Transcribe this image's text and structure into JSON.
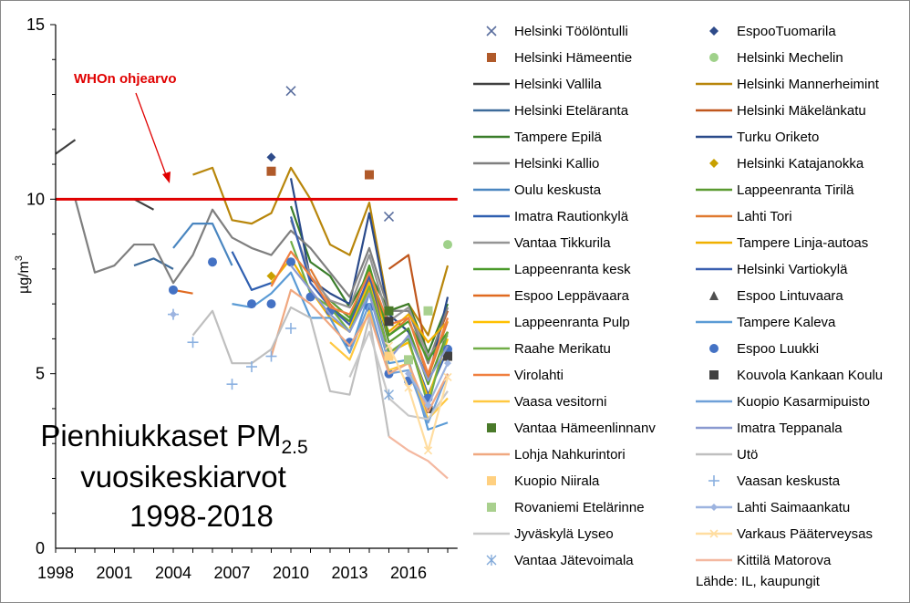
{
  "chart_data": {
    "type": "line",
    "title_main": "Pienhiukkaset PM",
    "title_sub": "2.5",
    "title_line2": "vuosikeskiarvot",
    "title_line3": "1998-2018",
    "ylabel_main": "µg/m",
    "ylabel_sup": "3",
    "source": "Lähde: IL, kaupungit",
    "who_label": "WHOn ohjearvo",
    "who_value": 10,
    "xlim": [
      1998,
      2018.5
    ],
    "ylim": [
      0,
      15
    ],
    "xticks": [
      "1998",
      "2001",
      "2004",
      "2007",
      "2010",
      "2013",
      "2016"
    ],
    "yticks": [
      "0",
      "5",
      "10",
      "15"
    ],
    "series": [
      {
        "name": "Helsinki Töölöntulli",
        "color": "#5a6e9e",
        "style": "x",
        "x": [
          2010,
          2015
        ],
        "y": [
          13.1,
          9.5
        ]
      },
      {
        "name": "EspooTuomarila",
        "color": "#2e4b8a",
        "style": "diamond",
        "x": [
          2009
        ],
        "y": [
          11.2
        ]
      },
      {
        "name": "Helsinki Hämeentie",
        "color": "#b05a2a",
        "style": "square",
        "x": [
          2009,
          2014
        ],
        "y": [
          10.8,
          10.7
        ]
      },
      {
        "name": "Helsinki Mechelin",
        "color": "#9fd18a",
        "style": "circle",
        "x": [
          2018
        ],
        "y": [
          8.7
        ]
      },
      {
        "name": "Helsinki Vallila",
        "color": "#404040",
        "style": "line",
        "x": [
          1998,
          1999,
          2002,
          2003
        ],
        "y": [
          11.3,
          11.7,
          10,
          9.7
        ]
      },
      {
        "name": "Helsinki Mannerheimint",
        "color": "#b8860b",
        "style": "line",
        "x": [
          2005,
          2006,
          2007,
          2008,
          2009,
          2010,
          2011,
          2012,
          2013,
          2014,
          2015,
          2016,
          2017,
          2018
        ],
        "y": [
          10.7,
          10.9,
          9.4,
          9.3,
          9.6,
          10.9,
          10,
          8.7,
          8.4,
          9.9,
          6.8,
          7,
          6.1,
          8.1
        ]
      },
      {
        "name": "Helsinki Eteläranta",
        "color": "#3d6b9a",
        "style": "line",
        "x": [
          2002,
          2003,
          2004
        ],
        "y": [
          8.1,
          8.3,
          8.0
        ]
      },
      {
        "name": "Helsinki Mäkelänkatu",
        "color": "#c0571d",
        "style": "line",
        "x": [
          2015,
          2016,
          2017,
          2018
        ],
        "y": [
          8.0,
          8.4,
          5.3,
          6.8
        ]
      },
      {
        "name": "Tampere Epilä",
        "color": "#3a7d2a",
        "style": "line",
        "x": [
          2010,
          2011,
          2012,
          2013,
          2014,
          2015,
          2016,
          2017,
          2018
        ],
        "y": [
          9.8,
          8.2,
          7.8,
          6.9,
          7.9,
          6.8,
          7.0,
          5.6,
          7.0
        ]
      },
      {
        "name": "Turku Oriketo",
        "color": "#2a4a8a",
        "style": "line",
        "x": [
          2010,
          2011,
          2012,
          2013,
          2014,
          2015,
          2016,
          2017,
          2018
        ],
        "y": [
          10.6,
          7.7,
          7.3,
          7.0,
          9.6,
          6.7,
          6.2,
          4.8,
          7.2
        ]
      },
      {
        "name": "Helsinki Kallio",
        "color": "#7f7f7f",
        "style": "line",
        "x": [
          1999,
          2000,
          2001,
          2002,
          2003,
          2004,
          2005,
          2006,
          2007,
          2008,
          2009,
          2010,
          2011,
          2012,
          2013,
          2014,
          2015,
          2016,
          2017,
          2018
        ],
        "y": [
          10,
          7.9,
          8.1,
          8.7,
          8.7,
          7.6,
          8.4,
          9.7,
          8.9,
          8.6,
          8.4,
          9.1,
          8.6,
          7.9,
          7.2,
          8.6,
          6.8,
          6.8,
          5.3,
          6.9
        ]
      },
      {
        "name": "Helsinki Katajanokka",
        "color": "#c8a000",
        "style": "diamond",
        "x": [
          2009
        ],
        "y": [
          7.8
        ]
      },
      {
        "name": "Oulu keskusta",
        "color": "#4a86c0",
        "style": "line",
        "x": [
          2004,
          2005,
          2006,
          2007
        ],
        "y": [
          8.6,
          9.3,
          9.3,
          8.1
        ]
      },
      {
        "name": "Lappeenranta Tirilä",
        "color": "#5a9a30",
        "style": "line",
        "x": [
          2012,
          2013,
          2014,
          2015,
          2016,
          2017,
          2018
        ],
        "y": [
          7.1,
          6.6,
          8.0,
          5.9,
          6.3,
          4.7,
          6.2
        ]
      },
      {
        "name": "Imatra Rautionkylä",
        "color": "#2f5fb0",
        "style": "line",
        "x": [
          2007,
          2008,
          2009
        ],
        "y": [
          8.5,
          7.4,
          7.6
        ]
      },
      {
        "name": "Lahti Tori",
        "color": "#e07a30",
        "style": "line",
        "x": [
          2011,
          2012,
          2013,
          2014,
          2015,
          2016,
          2017,
          2018
        ],
        "y": [
          8.0,
          7.0,
          6.4,
          7.7,
          6.1,
          6.6,
          4.9,
          6.5
        ]
      },
      {
        "name": "Vantaa Tikkurila",
        "color": "#959595",
        "style": "line",
        "x": [
          2010,
          2011,
          2012,
          2013,
          2014,
          2015,
          2016,
          2017,
          2018
        ],
        "y": [
          9.4,
          7.8,
          7.1,
          6.9,
          8.4,
          6.5,
          6.9,
          5.5,
          6.1
        ]
      },
      {
        "name": "Tampere Linja-autoas",
        "color": "#f0b000",
        "style": "line",
        "x": [
          2009,
          2010,
          2011,
          2012,
          2013,
          2014,
          2015,
          2016,
          2017,
          2018
        ],
        "y": [
          7.6,
          8.3,
          7.4,
          6.6,
          6.2,
          7.4,
          6.2,
          6.7,
          5.9,
          6.5
        ]
      },
      {
        "name": "Lappeenranta kesk",
        "color": "#4a9a2a",
        "style": "line",
        "x": [
          2012,
          2013,
          2014,
          2015,
          2016,
          2017,
          2018
        ],
        "y": [
          6.9,
          6.5,
          8.1,
          6.1,
          6.5,
          5.4,
          6.2
        ]
      },
      {
        "name": "Helsinki Vartiokylä",
        "color": "#3a5fb0",
        "style": "line",
        "x": [
          2010,
          2011,
          2012,
          2013,
          2014,
          2015,
          2016,
          2017,
          2018
        ],
        "y": [
          9.5,
          7.6,
          6.9,
          6.4,
          7.8,
          5.6,
          5.9,
          4.4,
          5.7
        ]
      },
      {
        "name": "Espoo Leppävaara",
        "color": "#e06a20",
        "style": "line",
        "x": [
          2004,
          2005
        ],
        "y": [
          7.4,
          7.3
        ]
      },
      {
        "name": "Espoo Lintuvaara",
        "color": "#505050",
        "style": "triangle",
        "x": [
          2017
        ],
        "y": [
          4.0
        ]
      },
      {
        "name": "Lappeenranta Pulp",
        "color": "#ffc000",
        "style": "line",
        "x": [
          2013,
          2014,
          2015,
          2016,
          2017,
          2018
        ],
        "y": [
          6.3,
          7.6,
          5.6,
          5.9,
          4.3,
          6.0
        ]
      },
      {
        "name": "Tampere Kaleva",
        "color": "#5b9bd5",
        "style": "line",
        "x": [
          2007,
          2008,
          2009,
          2010,
          2011,
          2012,
          2013,
          2014,
          2015,
          2016,
          2017,
          2018
        ],
        "y": [
          7.0,
          6.9,
          7.3,
          7.9,
          6.6,
          6.6,
          5.6,
          7.3,
          5.3,
          5.4,
          3.4,
          3.6
        ]
      },
      {
        "name": "Raahe Merikatu",
        "color": "#70ad47",
        "style": "line",
        "x": [
          2010,
          2011,
          2012,
          2013,
          2014,
          2015,
          2016,
          2017,
          2018
        ],
        "y": [
          8.8,
          7.3,
          6.9,
          6.2,
          7.5,
          5.6,
          6.0,
          4.1,
          6.2
        ]
      },
      {
        "name": "Espoo Luukki",
        "color": "#4472c4",
        "style": "circle",
        "x": [
          2004,
          2006,
          2008,
          2009,
          2010,
          2011,
          2012,
          2013,
          2014,
          2015,
          2016,
          2017,
          2018
        ],
        "y": [
          7.4,
          8.2,
          7.0,
          7.0,
          8.2,
          7.2,
          6.8,
          5.9,
          6.9,
          5.0,
          4.8,
          4.3,
          5.7
        ]
      },
      {
        "name": "Virolahti",
        "color": "#f08040",
        "style": "line",
        "x": [
          2009,
          2010,
          2011,
          2012,
          2013,
          2014,
          2015,
          2016,
          2017,
          2018
        ],
        "y": [
          7.5,
          8.5,
          7.8,
          6.9,
          6.7,
          7.9,
          6.4,
          6.6,
          5.0,
          6.6
        ]
      },
      {
        "name": "Kouvola Kankaan Koulu",
        "color": "#404040",
        "style": "square",
        "x": [
          2015,
          2017,
          2018
        ],
        "y": [
          6.5,
          4.0,
          5.5
        ]
      },
      {
        "name": "Vaasa vesitorni",
        "color": "#ffc840",
        "style": "line",
        "x": [
          2012,
          2013,
          2014,
          2015,
          2016,
          2017,
          2018
        ],
        "y": [
          5.9,
          5.4,
          6.8,
          5.1,
          5.3,
          3.7,
          4.3
        ]
      },
      {
        "name": "Kuopio Kasarmipuisto",
        "color": "#6fa0d8",
        "style": "line",
        "x": [
          2013,
          2014,
          2015,
          2016,
          2017,
          2018
        ],
        "y": [
          5.6,
          7.0,
          5.0,
          5.1,
          3.6,
          5.0
        ]
      },
      {
        "name": "Vantaa Hämeenlinnanv",
        "color": "#4a7a2a",
        "style": "square",
        "x": [
          2015
        ],
        "y": [
          6.8
        ]
      },
      {
        "name": "Imatra Teppanala",
        "color": "#8a9ad0",
        "style": "line",
        "x": [
          2010,
          2011,
          2012,
          2013,
          2014,
          2015,
          2016,
          2017,
          2018
        ],
        "y": [
          8.1,
          7.4,
          6.7,
          6.2,
          7.3,
          5.4,
          6.1,
          4.8,
          5.8
        ]
      },
      {
        "name": "Lohja Nahkurintori",
        "color": "#f0a880",
        "style": "line",
        "x": [
          2009,
          2010,
          2011,
          2012,
          2013,
          2014,
          2015,
          2016,
          2017,
          2018
        ],
        "y": [
          5.5,
          7.4,
          7.0,
          6.4,
          5.8,
          6.7,
          5.0,
          5.3,
          3.9,
          5.0
        ]
      },
      {
        "name": "Utö",
        "color": "#bfbfbf",
        "style": "line",
        "x": [
          2005,
          2006,
          2007,
          2008,
          2009,
          2010,
          2011,
          2012,
          2013,
          2014,
          2015
        ],
        "y": [
          6.1,
          6.8,
          5.3,
          5.3,
          5.7,
          6.9,
          6.6,
          4.5,
          4.4,
          6.6,
          3.2
        ]
      },
      {
        "name": "Kuopio Niirala",
        "color": "#ffd080",
        "style": "square",
        "x": [
          2015
        ],
        "y": [
          5.5
        ]
      },
      {
        "name": "Vaasan keskusta",
        "color": "#8ab0e0",
        "style": "plus",
        "x": [
          2004,
          2005,
          2007,
          2008,
          2009,
          2010
        ],
        "y": [
          6.7,
          5.9,
          4.7,
          5.2,
          5.5,
          6.3
        ]
      },
      {
        "name": "Rovaniemi Etelärinne",
        "color": "#a9d08e",
        "style": "square",
        "x": [
          2016,
          2017
        ],
        "y": [
          5.4,
          6.8
        ]
      },
      {
        "name": "Lahti Saimaankatu",
        "color": "#9db4e0",
        "style": "diamondline",
        "x": [
          2004,
          2016,
          2017,
          2018
        ],
        "y": [
          6.7,
          5.0,
          4.1,
          5.3
        ]
      },
      {
        "name": "Jyväskylä Lyseo",
        "color": "#c8c8c8",
        "style": "line",
        "x": [
          2013,
          2014,
          2015,
          2016,
          2017,
          2018
        ],
        "y": [
          4.9,
          6.2,
          4.3,
          3.8,
          3.7,
          4.5
        ]
      },
      {
        "name": "Varkaus Pääterveysas",
        "color": "#ffdda0",
        "style": "xline",
        "x": [
          2015,
          2016,
          2017,
          2018
        ],
        "y": [
          5.8,
          4.6,
          2.8,
          4.9
        ]
      },
      {
        "name": "Vantaa Jätevoimala",
        "color": "#7fa8d8",
        "style": "star",
        "x": [
          2015
        ],
        "y": [
          4.4
        ]
      },
      {
        "name": "Kittilä Matorova",
        "color": "#f4b8a0",
        "style": "line",
        "x": [
          2015,
          2016,
          2017,
          2018
        ],
        "y": [
          3.2,
          2.8,
          2.5,
          2.0
        ]
      }
    ]
  }
}
